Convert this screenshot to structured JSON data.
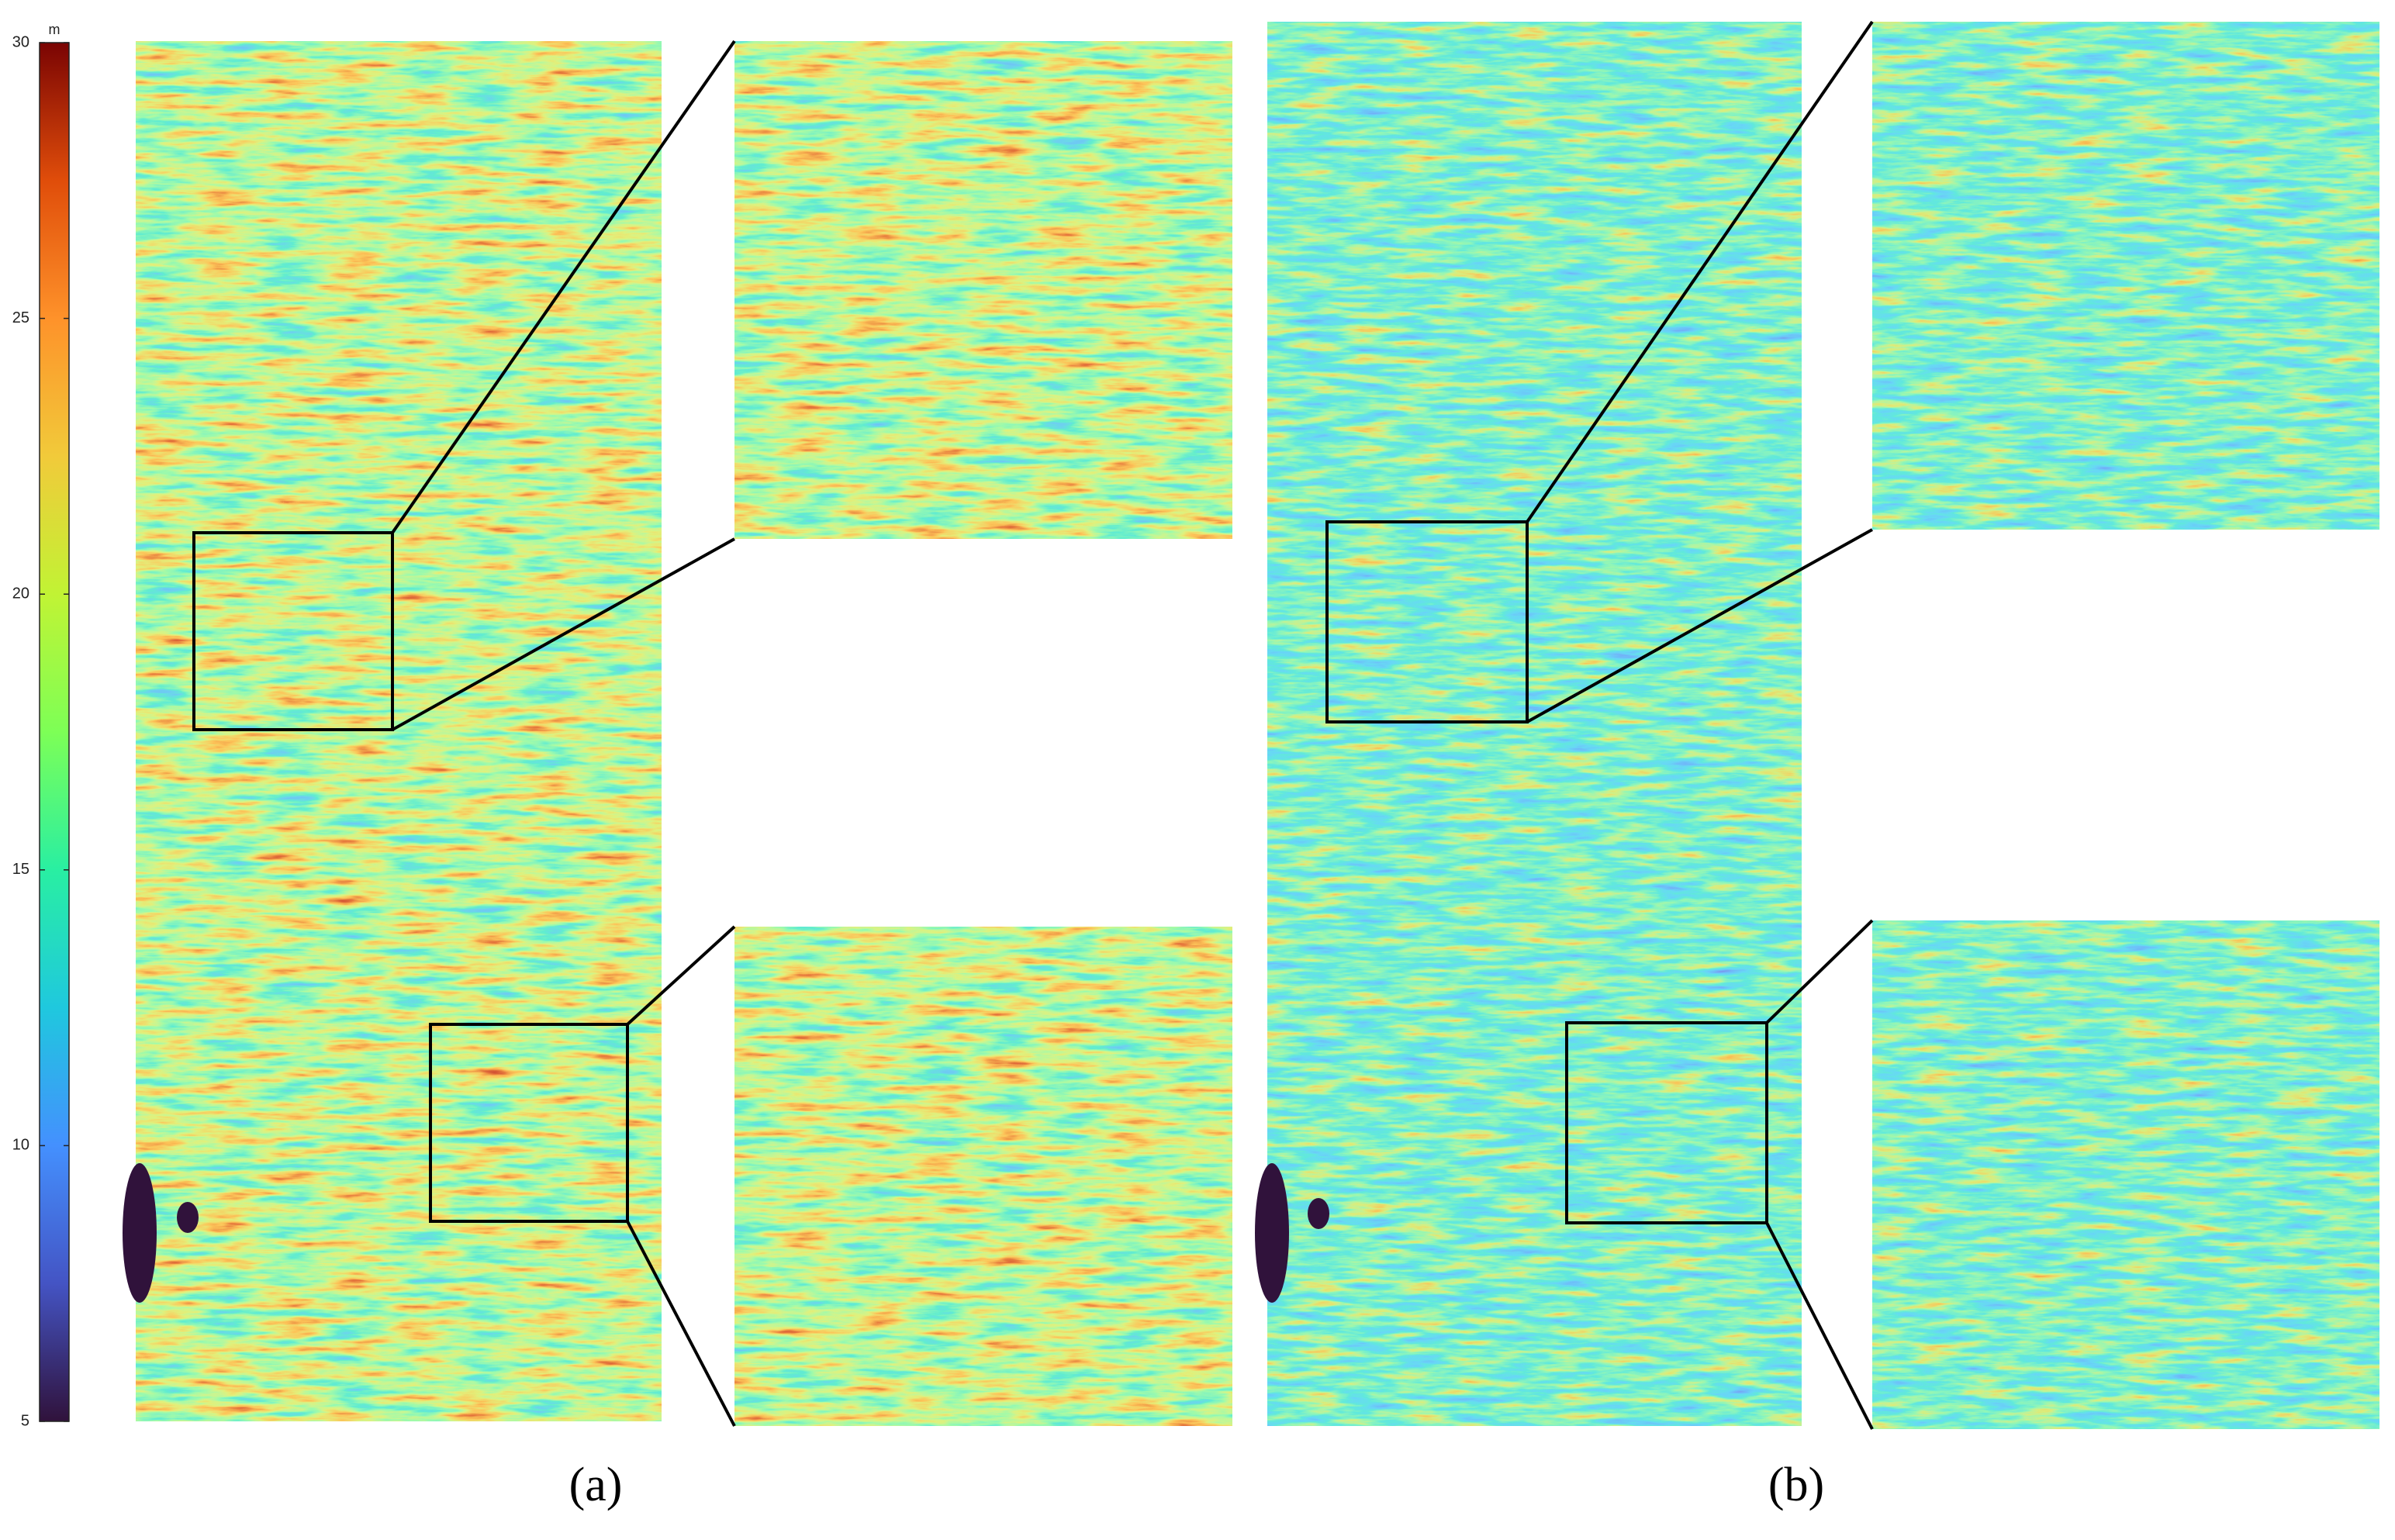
{
  "colorbar": {
    "unit": "m",
    "lim": [
      5,
      30
    ],
    "ticks": [
      5,
      10,
      15,
      20,
      25,
      30
    ]
  },
  "panels": [
    {
      "label": "(a)"
    },
    {
      "label": "(b)"
    }
  ]
}
